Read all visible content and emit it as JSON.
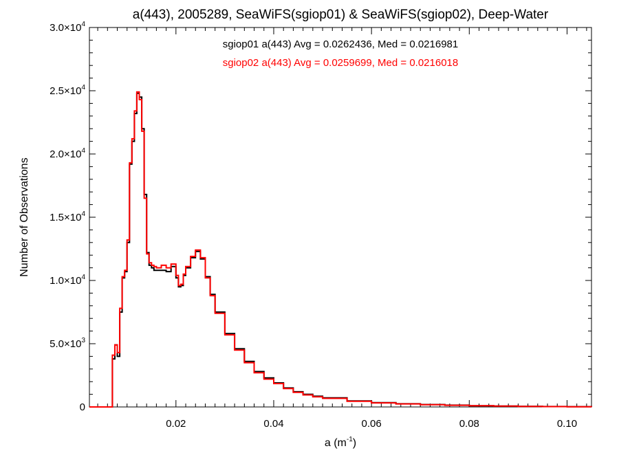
{
  "chart_data": {
    "type": "line",
    "step": true,
    "title": "a(443), 2005289, SeaWiFS(sgiop01) & SeaWiFS(sgiop02), Deep-Water",
    "xlabel": {
      "base": "a (m",
      "sup": "-1",
      "tail": ")"
    },
    "ylabel": "Number of Observations",
    "xlim": [
      0.0023,
      0.105
    ],
    "ylim": [
      0,
      30000
    ],
    "x_ticks": [
      {
        "value": 0.02,
        "label": "0.02"
      },
      {
        "value": 0.04,
        "label": "0.04"
      },
      {
        "value": 0.06,
        "label": "0.06"
      },
      {
        "value": 0.08,
        "label": "0.08"
      },
      {
        "value": 0.1,
        "label": "0.10"
      }
    ],
    "y_ticks": [
      {
        "value": 0,
        "mant": "0",
        "exp": ""
      },
      {
        "value": 5000,
        "mant": "5.0×10",
        "exp": "3"
      },
      {
        "value": 10000,
        "mant": "1.0×10",
        "exp": "4"
      },
      {
        "value": 15000,
        "mant": "1.5×10",
        "exp": "4"
      },
      {
        "value": 20000,
        "mant": "2.0×10",
        "exp": "4"
      },
      {
        "value": 25000,
        "mant": "2.5×10",
        "exp": "4"
      },
      {
        "value": 30000,
        "mant": "3.0×10",
        "exp": "4"
      }
    ],
    "grid": false,
    "legend_placement": "top-center",
    "series": [
      {
        "name": "sgiop01",
        "color": "#000000",
        "legend_text": "sgiop01 a(443) Avg = 0.0262436, Med = 0.0216981",
        "x": [
          0.0023,
          0.0065,
          0.007,
          0.0075,
          0.008,
          0.0085,
          0.009,
          0.0095,
          0.01,
          0.0105,
          0.011,
          0.0115,
          0.012,
          0.0125,
          0.013,
          0.0135,
          0.014,
          0.0145,
          0.015,
          0.0155,
          0.016,
          0.017,
          0.018,
          0.019,
          0.02,
          0.0205,
          0.021,
          0.0215,
          0.022,
          0.023,
          0.024,
          0.025,
          0.026,
          0.027,
          0.028,
          0.03,
          0.032,
          0.034,
          0.036,
          0.038,
          0.04,
          0.042,
          0.044,
          0.046,
          0.048,
          0.05,
          0.055,
          0.06,
          0.065,
          0.07,
          0.075,
          0.08,
          0.085,
          0.09,
          0.095,
          0.1,
          0.105
        ],
        "y": [
          0,
          0,
          3800,
          4900,
          4000,
          7500,
          10200,
          10700,
          13000,
          19200,
          21000,
          23200,
          24800,
          24500,
          22000,
          16800,
          12200,
          11200,
          11000,
          10800,
          10800,
          10800,
          10700,
          11100,
          10200,
          9500,
          9600,
          10400,
          11000,
          11800,
          12300,
          11700,
          10300,
          8900,
          7500,
          5800,
          4600,
          3600,
          2800,
          2300,
          1900,
          1500,
          1200,
          1000,
          850,
          720,
          480,
          340,
          250,
          190,
          140,
          100,
          70,
          50,
          30,
          20,
          0
        ]
      },
      {
        "name": "sgiop02",
        "color": "#ff0000",
        "legend_text": "sgiop02 a(443) Avg = 0.0259699, Med = 0.0216018",
        "x": [
          0.0023,
          0.0065,
          0.007,
          0.0075,
          0.008,
          0.0085,
          0.009,
          0.0095,
          0.01,
          0.0105,
          0.011,
          0.0115,
          0.012,
          0.0125,
          0.013,
          0.0135,
          0.014,
          0.0145,
          0.015,
          0.0155,
          0.016,
          0.017,
          0.018,
          0.019,
          0.02,
          0.0205,
          0.021,
          0.0215,
          0.022,
          0.023,
          0.024,
          0.025,
          0.026,
          0.027,
          0.028,
          0.03,
          0.032,
          0.034,
          0.036,
          0.038,
          0.04,
          0.042,
          0.044,
          0.046,
          0.048,
          0.05,
          0.055,
          0.06,
          0.065,
          0.07,
          0.075,
          0.08,
          0.085,
          0.09,
          0.095,
          0.1,
          0.105
        ],
        "y": [
          0,
          0,
          4100,
          4900,
          4300,
          7800,
          10300,
          10800,
          13200,
          19300,
          21200,
          23400,
          24900,
          24300,
          21800,
          16500,
          12100,
          11400,
          11200,
          11100,
          11000,
          11200,
          11000,
          11300,
          10400,
          9600,
          9700,
          10500,
          11100,
          11900,
          12400,
          11800,
          10200,
          8800,
          7400,
          5700,
          4500,
          3500,
          2700,
          2200,
          1850,
          1450,
          1150,
          950,
          800,
          680,
          450,
          320,
          240,
          180,
          130,
          95,
          65,
          45,
          28,
          18,
          0
        ]
      }
    ]
  }
}
